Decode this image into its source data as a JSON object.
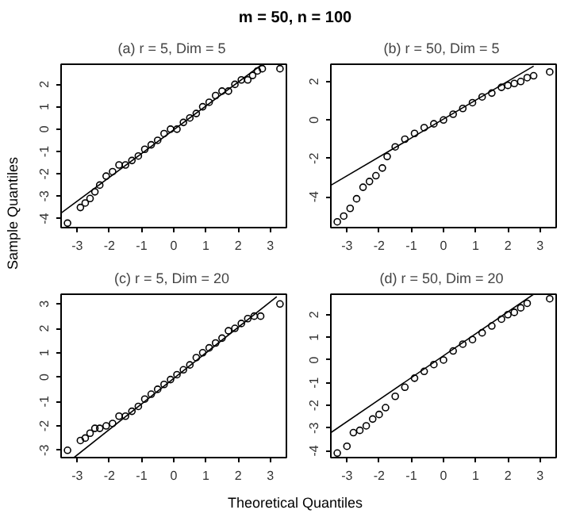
{
  "chart_data": [
    {
      "type": "scatter",
      "title": "(a)  r = 5, Dim = 5",
      "annotations": [
        "m = 50, n = 100"
      ],
      "ylabel": "Sample Quantiles",
      "xlim": [
        -3.5,
        3.5
      ],
      "ylim": [
        -4.4,
        2.9
      ],
      "xticks": [
        -3,
        -2,
        -1,
        0,
        1,
        2,
        3
      ],
      "yticks": [
        -4,
        -3,
        -2,
        -1,
        0,
        1,
        2
      ],
      "grid": false,
      "series": [
        {
          "marker": "circle",
          "color": "#000000",
          "x": [
            -3.3,
            -2.9,
            -2.75,
            -2.6,
            -2.45,
            -2.3,
            -2.1,
            -1.9,
            -1.7,
            -1.5,
            -1.3,
            -1.1,
            -0.9,
            -0.7,
            -0.5,
            -0.3,
            -0.1,
            0.1,
            0.3,
            0.5,
            0.7,
            0.9,
            1.1,
            1.3,
            1.5,
            1.7,
            1.9,
            2.1,
            2.3,
            2.45,
            2.6,
            2.75,
            3.3
          ],
          "values": [
            -4.2,
            -3.5,
            -3.3,
            -3.1,
            -2.8,
            -2.5,
            -2.1,
            -1.9,
            -1.6,
            -1.6,
            -1.4,
            -1.2,
            -0.9,
            -0.7,
            -0.5,
            -0.2,
            0.0,
            0.0,
            0.3,
            0.5,
            0.7,
            1.0,
            1.2,
            1.5,
            1.7,
            1.7,
            2.0,
            2.2,
            2.2,
            2.4,
            2.6,
            2.7,
            2.7
          ]
        },
        {
          "type": "line",
          "color": "#000000",
          "x": [
            -3.5,
            2.75
          ],
          "values": [
            -3.75,
            2.9
          ]
        }
      ]
    },
    {
      "type": "scatter",
      "title": "(b)  r = 50, Dim = 5",
      "xlim": [
        -3.5,
        3.5
      ],
      "ylim": [
        -5.6,
        2.9
      ],
      "xticks": [
        -3,
        -2,
        -1,
        0,
        1,
        2,
        3
      ],
      "yticks": [
        -4,
        -2,
        0,
        2
      ],
      "grid": false,
      "series": [
        {
          "marker": "circle",
          "color": "#000000",
          "x": [
            -3.3,
            -3.1,
            -2.9,
            -2.7,
            -2.5,
            -2.3,
            -2.1,
            -1.9,
            -1.75,
            -1.5,
            -1.2,
            -0.9,
            -0.6,
            -0.3,
            0,
            0.3,
            0.6,
            0.9,
            1.2,
            1.5,
            1.8,
            2.0,
            2.2,
            2.4,
            2.6,
            2.8,
            3.3
          ],
          "values": [
            -5.3,
            -5.0,
            -4.6,
            -4.1,
            -3.5,
            -3.2,
            -2.9,
            -2.5,
            -1.9,
            -1.4,
            -1.0,
            -0.7,
            -0.4,
            -0.2,
            0.0,
            0.3,
            0.6,
            0.9,
            1.2,
            1.4,
            1.7,
            1.8,
            1.9,
            2.0,
            2.2,
            2.3,
            2.5
          ]
        },
        {
          "type": "line",
          "color": "#000000",
          "x": [
            -3.5,
            2.8
          ],
          "values": [
            -3.4,
            2.8
          ]
        }
      ]
    },
    {
      "type": "scatter",
      "title": "(c)  r = 5, Dim = 20",
      "xlabel": "Theoretical Quantiles",
      "xlim": [
        -3.5,
        3.5
      ],
      "ylim": [
        -3.3,
        3.4
      ],
      "xticks": [
        -3,
        -2,
        -1,
        0,
        1,
        2,
        3
      ],
      "yticks": [
        -3,
        -2,
        -1,
        0,
        1,
        2,
        3
      ],
      "grid": false,
      "series": [
        {
          "marker": "circle",
          "color": "#000000",
          "x": [
            -3.3,
            -2.9,
            -2.75,
            -2.6,
            -2.45,
            -2.3,
            -2.1,
            -1.9,
            -1.7,
            -1.5,
            -1.3,
            -1.1,
            -0.9,
            -0.7,
            -0.5,
            -0.3,
            -0.1,
            0.1,
            0.3,
            0.5,
            0.7,
            0.9,
            1.1,
            1.3,
            1.5,
            1.7,
            1.9,
            2.1,
            2.3,
            2.5,
            2.7,
            3.3
          ],
          "values": [
            -3.0,
            -2.6,
            -2.5,
            -2.3,
            -2.1,
            -2.1,
            -2.0,
            -1.9,
            -1.6,
            -1.6,
            -1.4,
            -1.2,
            -0.9,
            -0.7,
            -0.5,
            -0.3,
            -0.1,
            0.1,
            0.3,
            0.5,
            0.8,
            1.0,
            1.2,
            1.4,
            1.6,
            1.9,
            2.0,
            2.2,
            2.4,
            2.5,
            2.5,
            3.0
          ]
        },
        {
          "type": "line",
          "color": "#000000",
          "x": [
            -3.1,
            3.2
          ],
          "values": [
            -3.3,
            3.3
          ]
        }
      ]
    },
    {
      "type": "scatter",
      "title": "(d)  r = 50, Dim = 20",
      "xlim": [
        -3.5,
        3.5
      ],
      "ylim": [
        -4.3,
        2.9
      ],
      "xticks": [
        -3,
        -2,
        -1,
        0,
        1,
        2,
        3
      ],
      "yticks": [
        -4,
        -3,
        -2,
        -1,
        0,
        1,
        2
      ],
      "grid": false,
      "series": [
        {
          "marker": "circle",
          "color": "#000000",
          "x": [
            -3.3,
            -3.0,
            -2.8,
            -2.6,
            -2.4,
            -2.2,
            -2.0,
            -1.8,
            -1.5,
            -1.2,
            -0.9,
            -0.6,
            -0.3,
            0,
            0.3,
            0.6,
            0.9,
            1.2,
            1.5,
            1.8,
            2.0,
            2.2,
            2.4,
            2.6,
            3.3
          ],
          "values": [
            -4.1,
            -3.8,
            -3.2,
            -3.1,
            -2.9,
            -2.6,
            -2.4,
            -2.1,
            -1.6,
            -1.2,
            -0.8,
            -0.5,
            -0.2,
            0.0,
            0.4,
            0.7,
            0.9,
            1.2,
            1.5,
            1.8,
            2.0,
            2.1,
            2.3,
            2.5,
            2.7
          ]
        },
        {
          "type": "line",
          "color": "#000000",
          "x": [
            -3.5,
            2.8
          ],
          "values": [
            -3.2,
            2.9
          ]
        }
      ]
    }
  ]
}
